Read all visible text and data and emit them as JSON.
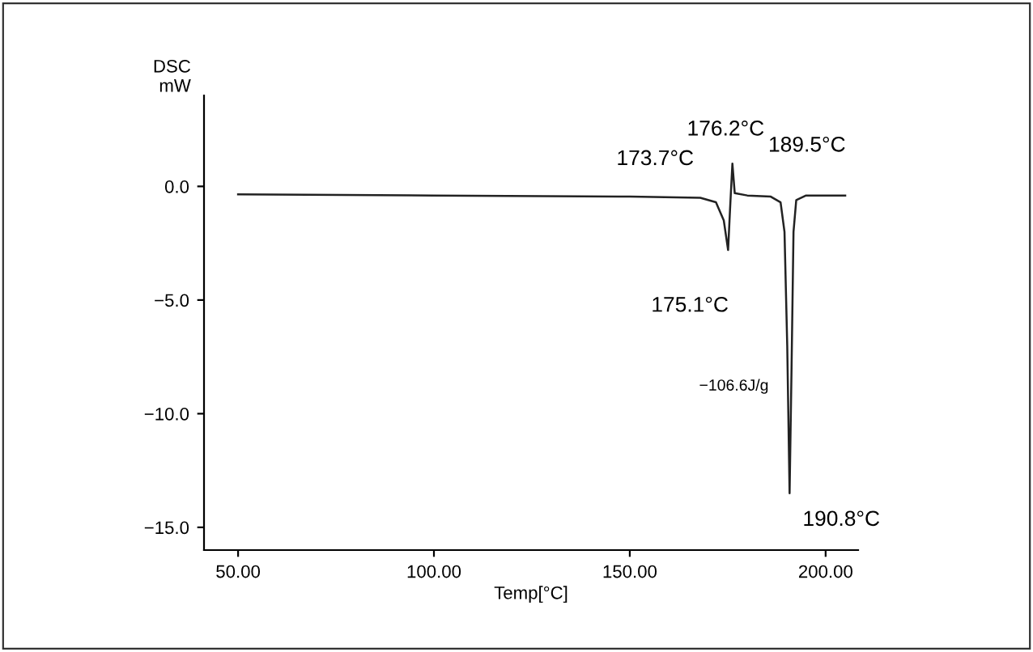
{
  "chart_data": {
    "type": "line",
    "ylabel": "DSC\nmW",
    "xlabel": "Temp[°C]",
    "x": [
      50,
      100,
      150,
      168,
      172,
      174,
      175.1,
      175.6,
      176.2,
      176.8,
      180,
      186,
      188.5,
      189.5,
      190.2,
      190.8,
      191.3,
      191.8,
      192.5,
      195,
      205
    ],
    "series": [
      {
        "color": "#222222",
        "values": [
          -0.35,
          -0.4,
          -0.45,
          -0.5,
          -0.7,
          -1.5,
          -2.8,
          -1.0,
          1.0,
          -0.3,
          -0.4,
          -0.45,
          -0.7,
          -2.0,
          -7.0,
          -13.5,
          -8.0,
          -2.0,
          -0.6,
          -0.4,
          -0.4
        ]
      }
    ],
    "xlim": [
      41.3,
      208.3
    ],
    "ylim": [
      -16,
      4
    ],
    "xticks": [
      {
        "value": 50,
        "label": "50.00"
      },
      {
        "value": 100,
        "label": "100.00"
      },
      {
        "value": 150,
        "label": "150.00"
      },
      {
        "value": 200,
        "label": "200.00"
      }
    ],
    "yticks": [
      {
        "value": -15,
        "label": "−15.0"
      },
      {
        "value": -10,
        "label": "−10.0"
      },
      {
        "value": -5,
        "label": "−5.0"
      },
      {
        "value": 0,
        "label": "0.0"
      }
    ],
    "grid": false,
    "legend": false,
    "marker": "none",
    "line_style": "solid",
    "annotations": [
      {
        "text": "173.7°C",
        "x": 173.7,
        "y": -0.5
      },
      {
        "text": "176.2°C",
        "x": 176.2,
        "y": 1.0
      },
      {
        "text": "189.5°C",
        "x": 189.5,
        "y": -0.5
      },
      {
        "text": "175.1°C",
        "x": 175.1,
        "y": -2.8
      },
      {
        "text": "190.8°C",
        "x": 190.8,
        "y": -13.5
      },
      "−106.6J/g"
    ]
  }
}
